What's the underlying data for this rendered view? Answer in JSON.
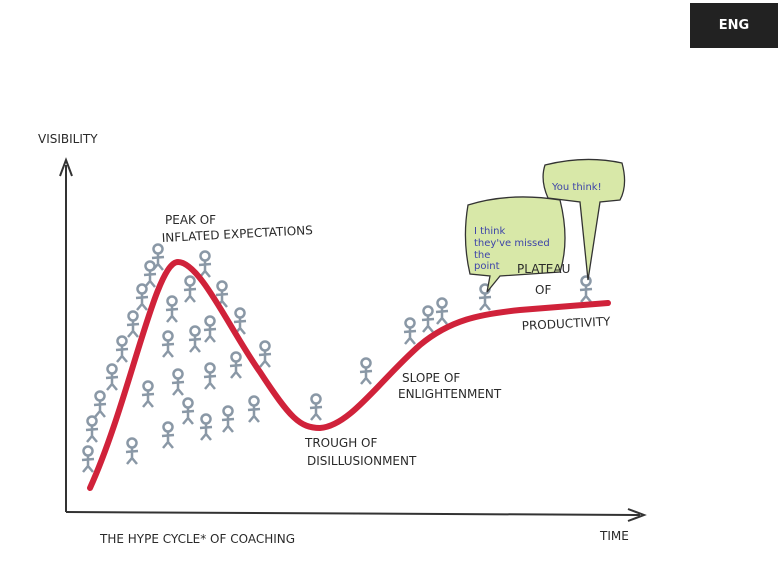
{
  "header": {
    "language_button": "ENG"
  },
  "illustration": {
    "axes": {
      "y_label": "VISIBILITY",
      "x_label": "TIME"
    },
    "phases": [
      {
        "lines": [
          "PEAK OF",
          "INFLATED EXPECTATIONS"
        ]
      },
      {
        "lines": [
          "TROUGH OF",
          "DISILLUSIONMENT"
        ]
      },
      {
        "lines": [
          "SLOPE OF",
          "ENLIGHTENMENT"
        ]
      },
      {
        "lines": [
          "PLATEAU",
          "OF",
          "PRODUCTIVITY"
        ]
      }
    ],
    "speech_bubbles": [
      {
        "lines": [
          "I think",
          "they've missed",
          "the",
          "point"
        ]
      },
      {
        "lines": [
          "You think!"
        ]
      }
    ],
    "caption": "THE HYPE CYCLE* OF COACHING"
  }
}
